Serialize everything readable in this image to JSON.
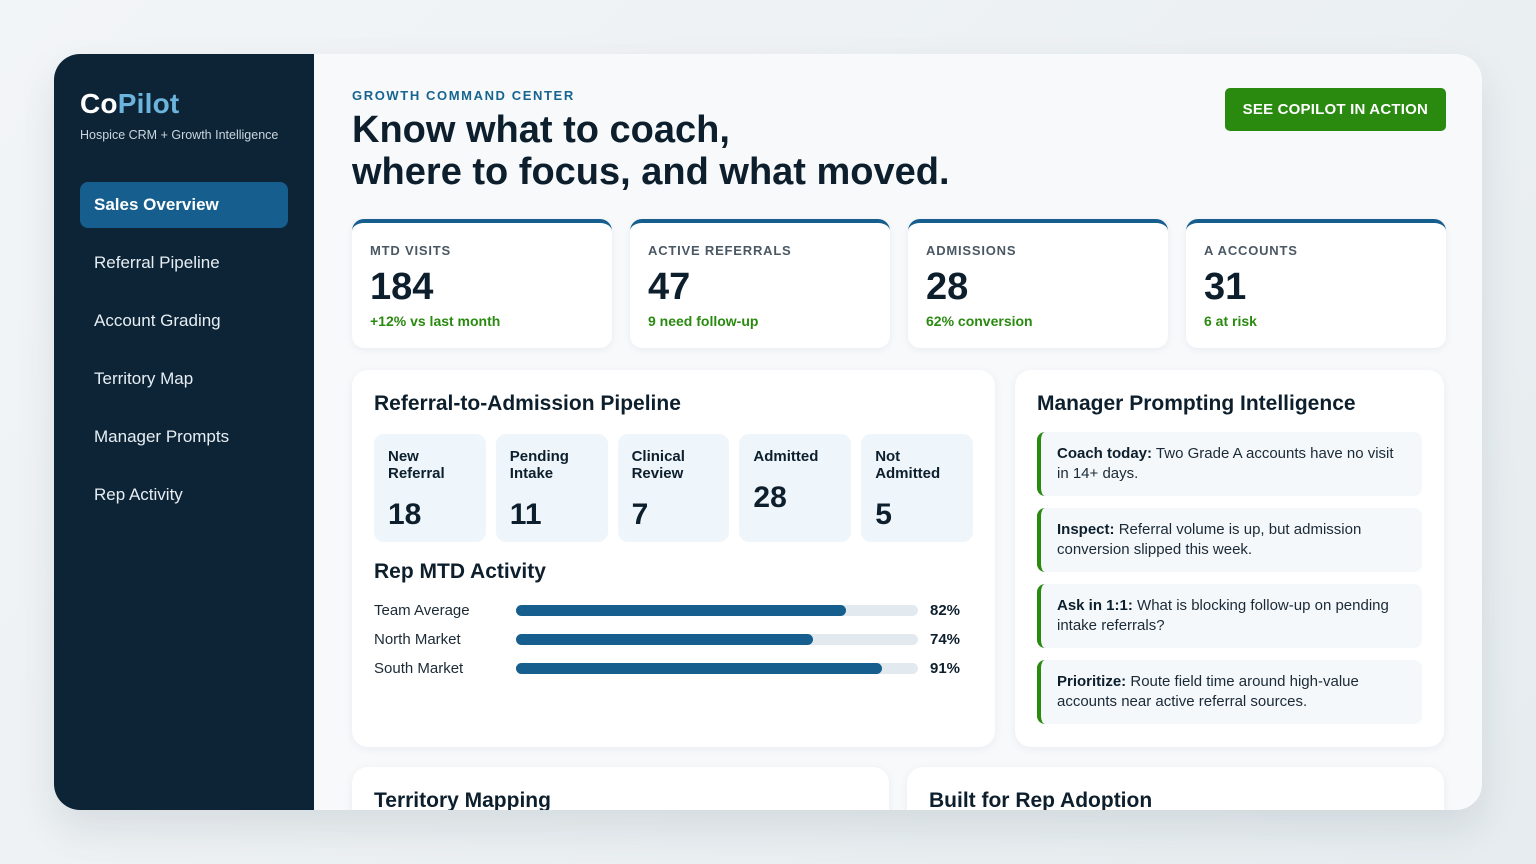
{
  "brand": {
    "name_start": "Co",
    "name_accent": "Pilot",
    "tagline": "Hospice CRM + Growth Intelligence"
  },
  "sidebar": {
    "items": [
      {
        "label": "Sales Overview",
        "active": true
      },
      {
        "label": "Referral Pipeline"
      },
      {
        "label": "Account Grading"
      },
      {
        "label": "Territory Map"
      },
      {
        "label": "Manager Prompts"
      },
      {
        "label": "Rep Activity"
      }
    ]
  },
  "header": {
    "eyebrow": "GROWTH COMMAND CENTER",
    "headline_line1": "Know what to coach,",
    "headline_line2": "where to focus, and what moved.",
    "cta_label": "SEE COPILOT IN ACTION"
  },
  "kpis": [
    {
      "label": "MTD VISITS",
      "value": "184",
      "note": "+12% vs last month"
    },
    {
      "label": "ACTIVE REFERRALS",
      "value": "47",
      "note": "9 need follow-up"
    },
    {
      "label": "ADMISSIONS",
      "value": "28",
      "note": "62% conversion"
    },
    {
      "label": "A ACCOUNTS",
      "value": "31",
      "note": "6 at risk"
    }
  ],
  "pipeline": {
    "title": "Referral-to-Admission Pipeline",
    "stages": [
      {
        "line1": "New",
        "line2": "Referral",
        "value": "18"
      },
      {
        "line1": "Pending",
        "line2": "Intake",
        "value": "11"
      },
      {
        "line1": "Clinical",
        "line2": "Review",
        "value": "7"
      },
      {
        "line1": "Admitted",
        "line2": "",
        "value": "28"
      },
      {
        "line1": "Not",
        "line2": "Admitted",
        "value": "5"
      }
    ]
  },
  "activity": {
    "title": "Rep MTD Activity",
    "rows": [
      {
        "name": "Team Average",
        "pct": 82,
        "pct_label": "82%"
      },
      {
        "name": "North Market",
        "pct": 74,
        "pct_label": "74%"
      },
      {
        "name": "South Market",
        "pct": 91,
        "pct_label": "91%"
      }
    ]
  },
  "prompts": {
    "title": "Manager Prompting Intelligence",
    "items": [
      {
        "lead": "Coach today:",
        "text": "Two Grade A accounts have no visit in 14+ days."
      },
      {
        "lead": "Inspect:",
        "text": "Referral volume is up, but admission conversion slipped this week."
      },
      {
        "lead": "Ask in 1:1:",
        "text": "What is blocking follow-up on pending intake referrals?"
      },
      {
        "lead": "Prioritize:",
        "text": "Route field time around high-value accounts near active referral sources."
      }
    ]
  },
  "bottom": {
    "left_title": "Territory Mapping",
    "right_title": "Built for Rep Adoption"
  },
  "colors": {
    "sidebar": "#0d2436",
    "accent": "#165e8d",
    "cta": "#2a8a10",
    "positive": "#2a8a10"
  }
}
